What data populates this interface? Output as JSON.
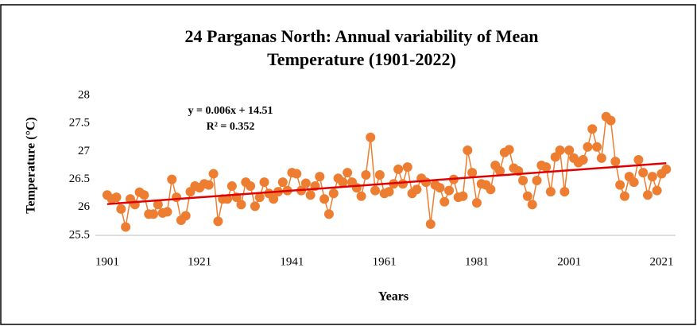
{
  "chart_data": {
    "type": "line",
    "title": "24 Parganas North: Annual variability of Mean",
    "title_line2": "Temperature (1901-2022)",
    "x_label": "Years",
    "y_label": "Temperature (°C)",
    "annotations": [
      "y = 0.006x + 14.51",
      "R² = 0.352"
    ],
    "x": [
      1901,
      1902,
      1903,
      1904,
      1905,
      1906,
      1907,
      1908,
      1909,
      1910,
      1911,
      1912,
      1913,
      1914,
      1915,
      1916,
      1917,
      1918,
      1919,
      1920,
      1921,
      1922,
      1923,
      1924,
      1925,
      1926,
      1927,
      1928,
      1929,
      1930,
      1931,
      1932,
      1933,
      1934,
      1935,
      1936,
      1937,
      1938,
      1939,
      1940,
      1941,
      1942,
      1943,
      1944,
      1945,
      1946,
      1947,
      1948,
      1949,
      1950,
      1951,
      1952,
      1953,
      1954,
      1955,
      1956,
      1957,
      1958,
      1959,
      1960,
      1961,
      1962,
      1963,
      1964,
      1965,
      1966,
      1967,
      1968,
      1969,
      1970,
      1971,
      1972,
      1973,
      1974,
      1975,
      1976,
      1977,
      1978,
      1979,
      1980,
      1981,
      1982,
      1983,
      1984,
      1985,
      1986,
      1987,
      1988,
      1989,
      1990,
      1991,
      1992,
      1993,
      1994,
      1995,
      1996,
      1997,
      1998,
      1999,
      2000,
      2001,
      2002,
      2003,
      2004,
      2005,
      2006,
      2007,
      2008,
      2009,
      2010,
      2011,
      2012,
      2013,
      2014,
      2015,
      2016,
      2017,
      2018,
      2019,
      2020,
      2021,
      2022
    ],
    "series": [
      {
        "name": "Mean Temperature",
        "color": "#ed7d31",
        "values": [
          26.22,
          26.15,
          26.18,
          25.97,
          25.65,
          26.15,
          26.05,
          26.27,
          26.22,
          25.88,
          25.88,
          26.05,
          25.9,
          25.92,
          26.5,
          26.18,
          25.77,
          25.85,
          26.28,
          26.38,
          26.35,
          26.42,
          26.4,
          26.6,
          25.75,
          26.15,
          26.15,
          26.38,
          26.18,
          26.05,
          26.45,
          26.38,
          26.02,
          26.18,
          26.45,
          26.25,
          26.15,
          26.28,
          26.45,
          26.3,
          26.62,
          26.6,
          26.3,
          26.43,
          26.22,
          26.38,
          26.55,
          26.15,
          25.88,
          26.25,
          26.52,
          26.45,
          26.62,
          26.45,
          26.35,
          26.2,
          26.58,
          27.25,
          26.3,
          26.58,
          26.25,
          26.28,
          26.42,
          26.68,
          26.42,
          26.72,
          26.25,
          26.32,
          26.52,
          26.45,
          25.7,
          26.4,
          26.35,
          26.1,
          26.3,
          26.5,
          26.18,
          26.2,
          27.02,
          26.62,
          26.08,
          26.42,
          26.4,
          26.32,
          26.75,
          26.65,
          26.98,
          27.03,
          26.7,
          26.65,
          26.48,
          26.2,
          26.05,
          26.48,
          26.75,
          26.72,
          26.28,
          26.9,
          27.02,
          26.28,
          27.02,
          26.88,
          26.8,
          26.85,
          27.08,
          27.4,
          27.08,
          26.88,
          27.62,
          27.55,
          26.82,
          26.4,
          26.2,
          26.55,
          26.45,
          26.85,
          26.62,
          26.22,
          26.55,
          26.3,
          26.6,
          26.68
        ]
      }
    ],
    "trendline_color": "#e00000",
    "xlim": [
      1899.3,
      2023.5
    ],
    "xticks": [
      1901,
      1921,
      1941,
      1961,
      1981,
      2001,
      2021
    ],
    "ylim": [
      25.5,
      28
    ],
    "yticks": [
      25.5,
      26,
      26.5,
      27,
      27.5,
      28
    ],
    "grid": false
  }
}
